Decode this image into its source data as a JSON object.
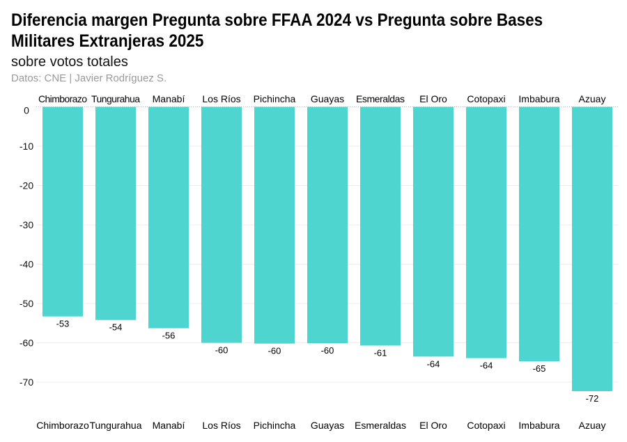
{
  "chart_data": {
    "type": "bar",
    "title": "Diferencia margen Pregunta sobre FFAA 2024 vs Pregunta sobre Bases Militares Extranjeras 2025",
    "subtitle": "sobre votos totales",
    "caption": "Datos: CNE | Javier Rodríguez S.",
    "categories": [
      "Chimborazo",
      "Tungurahua",
      "Manabí",
      "Los Ríos",
      "Pichincha",
      "Guayas",
      "Esmeraldas",
      "El Oro",
      "Cotopaxi",
      "Imbabura",
      "Azuay"
    ],
    "values": [
      -53.3,
      -54.2,
      -56.3,
      -60.0,
      -60.2,
      -60.1,
      -60.7,
      -63.5,
      -63.9,
      -64.7,
      -72.3
    ],
    "data_labels": [
      "-53",
      "-54",
      "-56",
      "-60",
      "-60",
      "-60",
      "-61",
      "-64",
      "-64",
      "-65",
      "-72"
    ],
    "yticks": [
      0,
      -10,
      -20,
      -30,
      -40,
      -50,
      -60,
      -70
    ],
    "ylim": [
      -74,
      0
    ],
    "xlabel": "",
    "ylabel": "",
    "grid": true,
    "category_labels_position": "top and bottom",
    "bar_color": "#4fd5cf"
  }
}
